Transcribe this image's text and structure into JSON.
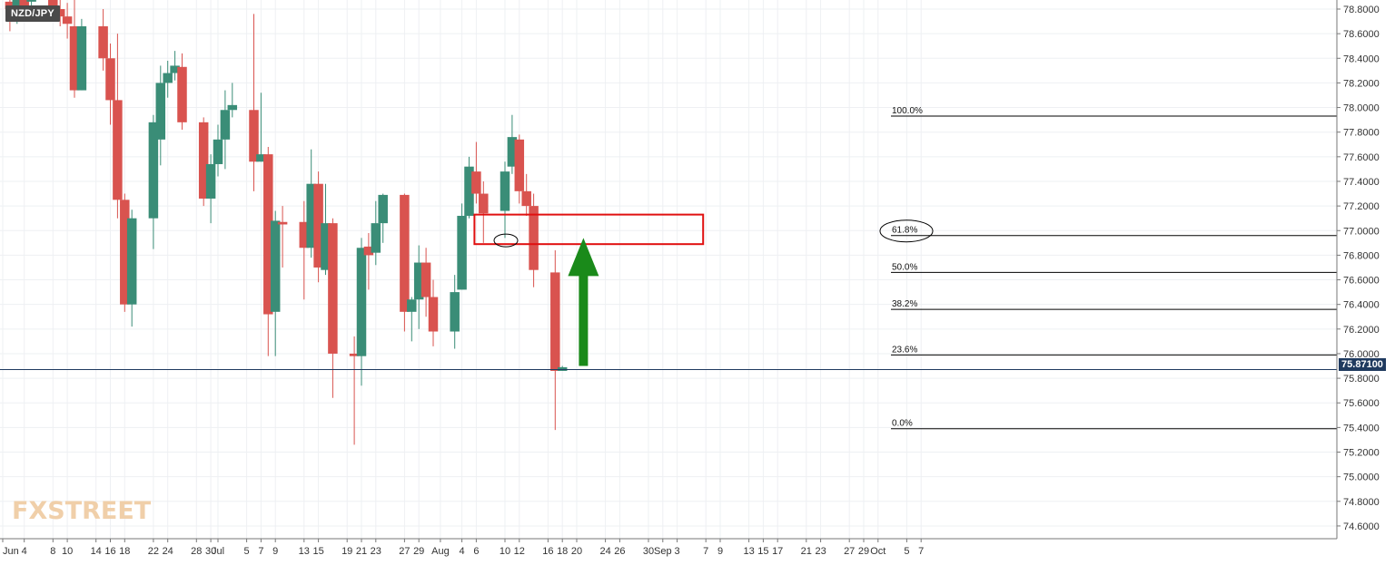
{
  "chart_data": {
    "type": "candlestick",
    "symbol": "NZD/JPY",
    "last_price": "75.87100",
    "watermark": "FXSTREET",
    "ylim": [
      74.4,
      78.94
    ],
    "y_ticks": [
      "78.8000",
      "78.6000",
      "78.4000",
      "78.2000",
      "78.0000",
      "77.8000",
      "77.6000",
      "77.4000",
      "77.2000",
      "77.0000",
      "76.8000",
      "76.6000",
      "76.4000",
      "76.2000",
      "76.0000",
      "75.8000",
      "75.6000",
      "75.4000",
      "75.2000",
      "75.0000",
      "74.8000",
      "74.6000"
    ],
    "x_ticks": [
      {
        "label": "Jun",
        "d": 0
      },
      {
        "label": "4",
        "d": 3
      },
      {
        "label": "8",
        "d": 7
      },
      {
        "label": "10",
        "d": 9
      },
      {
        "label": "14",
        "d": 13
      },
      {
        "label": "16",
        "d": 15
      },
      {
        "label": "18",
        "d": 17
      },
      {
        "label": "22",
        "d": 21
      },
      {
        "label": "24",
        "d": 23
      },
      {
        "label": "28",
        "d": 27
      },
      {
        "label": "30",
        "d": 29
      },
      {
        "label": "Jul",
        "d": 30
      },
      {
        "label": "5",
        "d": 34
      },
      {
        "label": "7",
        "d": 36
      },
      {
        "label": "9",
        "d": 38
      },
      {
        "label": "13",
        "d": 42
      },
      {
        "label": "15",
        "d": 44
      },
      {
        "label": "19",
        "d": 48
      },
      {
        "label": "21",
        "d": 50
      },
      {
        "label": "23",
        "d": 52
      },
      {
        "label": "27",
        "d": 56
      },
      {
        "label": "29",
        "d": 58
      },
      {
        "label": "Aug",
        "d": 61
      },
      {
        "label": "4",
        "d": 64
      },
      {
        "label": "6",
        "d": 66
      },
      {
        "label": "10",
        "d": 70
      },
      {
        "label": "12",
        "d": 72
      },
      {
        "label": "16",
        "d": 76
      },
      {
        "label": "18",
        "d": 78
      },
      {
        "label": "20",
        "d": 80
      },
      {
        "label": "24",
        "d": 84
      },
      {
        "label": "26",
        "d": 86
      },
      {
        "label": "30",
        "d": 90
      },
      {
        "label": "Sep",
        "d": 92
      },
      {
        "label": "3",
        "d": 94
      },
      {
        "label": "7",
        "d": 98
      },
      {
        "label": "9",
        "d": 100
      },
      {
        "label": "13",
        "d": 104
      },
      {
        "label": "15",
        "d": 106
      },
      {
        "label": "17",
        "d": 108
      },
      {
        "label": "21",
        "d": 112
      },
      {
        "label": "23",
        "d": 114
      },
      {
        "label": "27",
        "d": 118
      },
      {
        "label": "29",
        "d": 120
      },
      {
        "label": "Oct",
        "d": 122
      },
      {
        "label": "5",
        "d": 126
      },
      {
        "label": "7",
        "d": 128
      }
    ],
    "candles": [
      {
        "d": 1,
        "o": 78.86,
        "h": 78.95,
        "l": 78.62,
        "c": 78.8
      },
      {
        "d": 2,
        "o": 78.8,
        "h": 78.95,
        "l": 78.68,
        "c": 78.9
      },
      {
        "d": 3,
        "o": 78.88,
        "h": 78.95,
        "l": 78.7,
        "c": 78.8
      },
      {
        "d": 4,
        "o": 78.86,
        "h": 78.95,
        "l": 78.72,
        "c": 78.88
      },
      {
        "d": 7,
        "o": 78.9,
        "h": 78.95,
        "l": 78.72,
        "c": 78.78
      },
      {
        "d": 8,
        "o": 78.8,
        "h": 78.95,
        "l": 78.66,
        "c": 78.74
      },
      {
        "d": 9,
        "o": 78.74,
        "h": 78.85,
        "l": 78.56,
        "c": 78.68
      },
      {
        "d": 10,
        "o": 78.66,
        "h": 78.95,
        "l": 78.08,
        "c": 78.14
      },
      {
        "d": 11,
        "o": 78.14,
        "h": 78.72,
        "l": 78.14,
        "c": 78.66
      },
      {
        "d": 14,
        "o": 78.66,
        "h": 78.8,
        "l": 78.3,
        "c": 78.4
      },
      {
        "d": 15,
        "o": 78.4,
        "h": 78.52,
        "l": 77.86,
        "c": 78.06
      },
      {
        "d": 16,
        "o": 78.06,
        "h": 78.6,
        "l": 77.1,
        "c": 77.25
      },
      {
        "d": 17,
        "o": 77.25,
        "h": 77.3,
        "l": 76.34,
        "c": 76.4
      },
      {
        "d": 18,
        "o": 76.4,
        "h": 77.17,
        "l": 76.22,
        "c": 77.1
      },
      {
        "d": 21,
        "o": 77.1,
        "h": 77.94,
        "l": 76.85,
        "c": 77.88
      },
      {
        "d": 22,
        "o": 77.74,
        "h": 78.34,
        "l": 77.53,
        "c": 78.2
      },
      {
        "d": 23,
        "o": 78.2,
        "h": 78.38,
        "l": 78.08,
        "c": 78.28
      },
      {
        "d": 24,
        "o": 78.28,
        "h": 78.46,
        "l": 78.22,
        "c": 78.34
      },
      {
        "d": 25,
        "o": 78.33,
        "h": 78.44,
        "l": 77.82,
        "c": 77.88
      },
      {
        "d": 28,
        "o": 77.88,
        "h": 77.92,
        "l": 77.2,
        "c": 77.26
      },
      {
        "d": 29,
        "o": 77.26,
        "h": 77.62,
        "l": 77.06,
        "c": 77.54
      },
      {
        "d": 30,
        "o": 77.54,
        "h": 77.86,
        "l": 77.44,
        "c": 77.74
      },
      {
        "d": 31,
        "o": 77.74,
        "h": 78.14,
        "l": 77.5,
        "c": 77.98
      },
      {
        "d": 32,
        "o": 77.98,
        "h": 78.2,
        "l": 77.92,
        "c": 78.02
      },
      {
        "d": 35,
        "o": 77.98,
        "h": 78.76,
        "l": 77.32,
        "c": 77.56
      },
      {
        "d": 36,
        "o": 77.56,
        "h": 78.12,
        "l": 77.56,
        "c": 77.62
      },
      {
        "d": 37,
        "o": 77.62,
        "h": 77.68,
        "l": 75.98,
        "c": 76.32
      },
      {
        "d": 38,
        "o": 76.34,
        "h": 77.16,
        "l": 75.98,
        "c": 77.08
      },
      {
        "d": 39,
        "o": 77.07,
        "h": 77.2,
        "l": 76.7,
        "c": 77.05
      },
      {
        "d": 42,
        "o": 77.07,
        "h": 77.24,
        "l": 76.44,
        "c": 76.86
      },
      {
        "d": 43,
        "o": 76.86,
        "h": 77.66,
        "l": 76.78,
        "c": 77.38
      },
      {
        "d": 44,
        "o": 77.38,
        "h": 77.48,
        "l": 76.58,
        "c": 76.7
      },
      {
        "d": 45,
        "o": 76.68,
        "h": 77.38,
        "l": 76.64,
        "c": 77.06
      },
      {
        "d": 46,
        "o": 77.06,
        "h": 77.1,
        "l": 75.64,
        "c": 76.0
      },
      {
        "d": 49,
        "o": 76.0,
        "h": 76.14,
        "l": 75.26,
        "c": 75.98
      },
      {
        "d": 50,
        "o": 75.98,
        "h": 76.94,
        "l": 75.74,
        "c": 76.86
      },
      {
        "d": 51,
        "o": 76.87,
        "h": 76.98,
        "l": 76.52,
        "c": 76.8
      },
      {
        "d": 52,
        "o": 76.82,
        "h": 77.24,
        "l": 76.72,
        "c": 77.06
      },
      {
        "d": 53,
        "o": 77.06,
        "h": 77.3,
        "l": 76.9,
        "c": 77.29
      },
      {
        "d": 56,
        "o": 77.29,
        "h": 77.3,
        "l": 76.18,
        "c": 76.34
      },
      {
        "d": 57,
        "o": 76.34,
        "h": 76.46,
        "l": 76.1,
        "c": 76.44
      },
      {
        "d": 58,
        "o": 76.44,
        "h": 76.88,
        "l": 76.2,
        "c": 76.74
      },
      {
        "d": 59,
        "o": 76.74,
        "h": 76.86,
        "l": 76.3,
        "c": 76.46
      },
      {
        "d": 60,
        "o": 76.46,
        "h": 76.6,
        "l": 76.06,
        "c": 76.18
      },
      {
        "d": 63,
        "o": 76.18,
        "h": 76.64,
        "l": 76.04,
        "c": 76.5
      },
      {
        "d": 64,
        "o": 76.52,
        "h": 77.22,
        "l": 76.52,
        "c": 77.12
      },
      {
        "d": 65,
        "o": 77.12,
        "h": 77.6,
        "l": 77.1,
        "c": 77.52
      },
      {
        "d": 66,
        "o": 77.48,
        "h": 77.72,
        "l": 77.22,
        "c": 77.3
      },
      {
        "d": 67,
        "o": 77.3,
        "h": 77.4,
        "l": 76.9,
        "c": 77.14
      },
      {
        "d": 70,
        "o": 77.16,
        "h": 77.56,
        "l": 76.94,
        "c": 77.48
      },
      {
        "d": 71,
        "o": 77.52,
        "h": 77.94,
        "l": 77.46,
        "c": 77.76
      },
      {
        "d": 72,
        "o": 77.74,
        "h": 77.78,
        "l": 77.22,
        "c": 77.32
      },
      {
        "d": 73,
        "o": 77.32,
        "h": 77.46,
        "l": 77.12,
        "c": 77.2
      },
      {
        "d": 74,
        "o": 77.2,
        "h": 77.3,
        "l": 76.54,
        "c": 76.68
      },
      {
        "d": 77,
        "o": 76.66,
        "h": 76.84,
        "l": 75.38,
        "c": 75.86
      },
      {
        "d": 78,
        "o": 75.86,
        "h": 75.9,
        "l": 75.86,
        "c": 75.89
      }
    ],
    "fib_levels": [
      {
        "label": "100.0%",
        "value": 77.93
      },
      {
        "label": "61.8%",
        "value": 76.96
      },
      {
        "label": "50.0%",
        "value": 76.66
      },
      {
        "label": "38.2%",
        "value": 76.36
      },
      {
        "label": "23.6%",
        "value": 75.99
      },
      {
        "label": "0.0%",
        "value": 75.39
      }
    ],
    "annotations": {
      "resistance_zone": {
        "d_start": 66,
        "d_end": 98,
        "y_top": 77.13,
        "y_bottom": 76.89,
        "color": "#e01010"
      },
      "arrow": {
        "d": 81,
        "from": 75.9,
        "to": 76.94,
        "color": "#1a8a1a"
      },
      "circle_small": {
        "d": 70,
        "y": 76.92
      },
      "circle_label_ring": {
        "level": "61.8%"
      }
    },
    "colors": {
      "up": "#3a8d77",
      "down": "#d9534f",
      "grid": "#eef0f3",
      "price_line": "#1f3a5f"
    }
  }
}
